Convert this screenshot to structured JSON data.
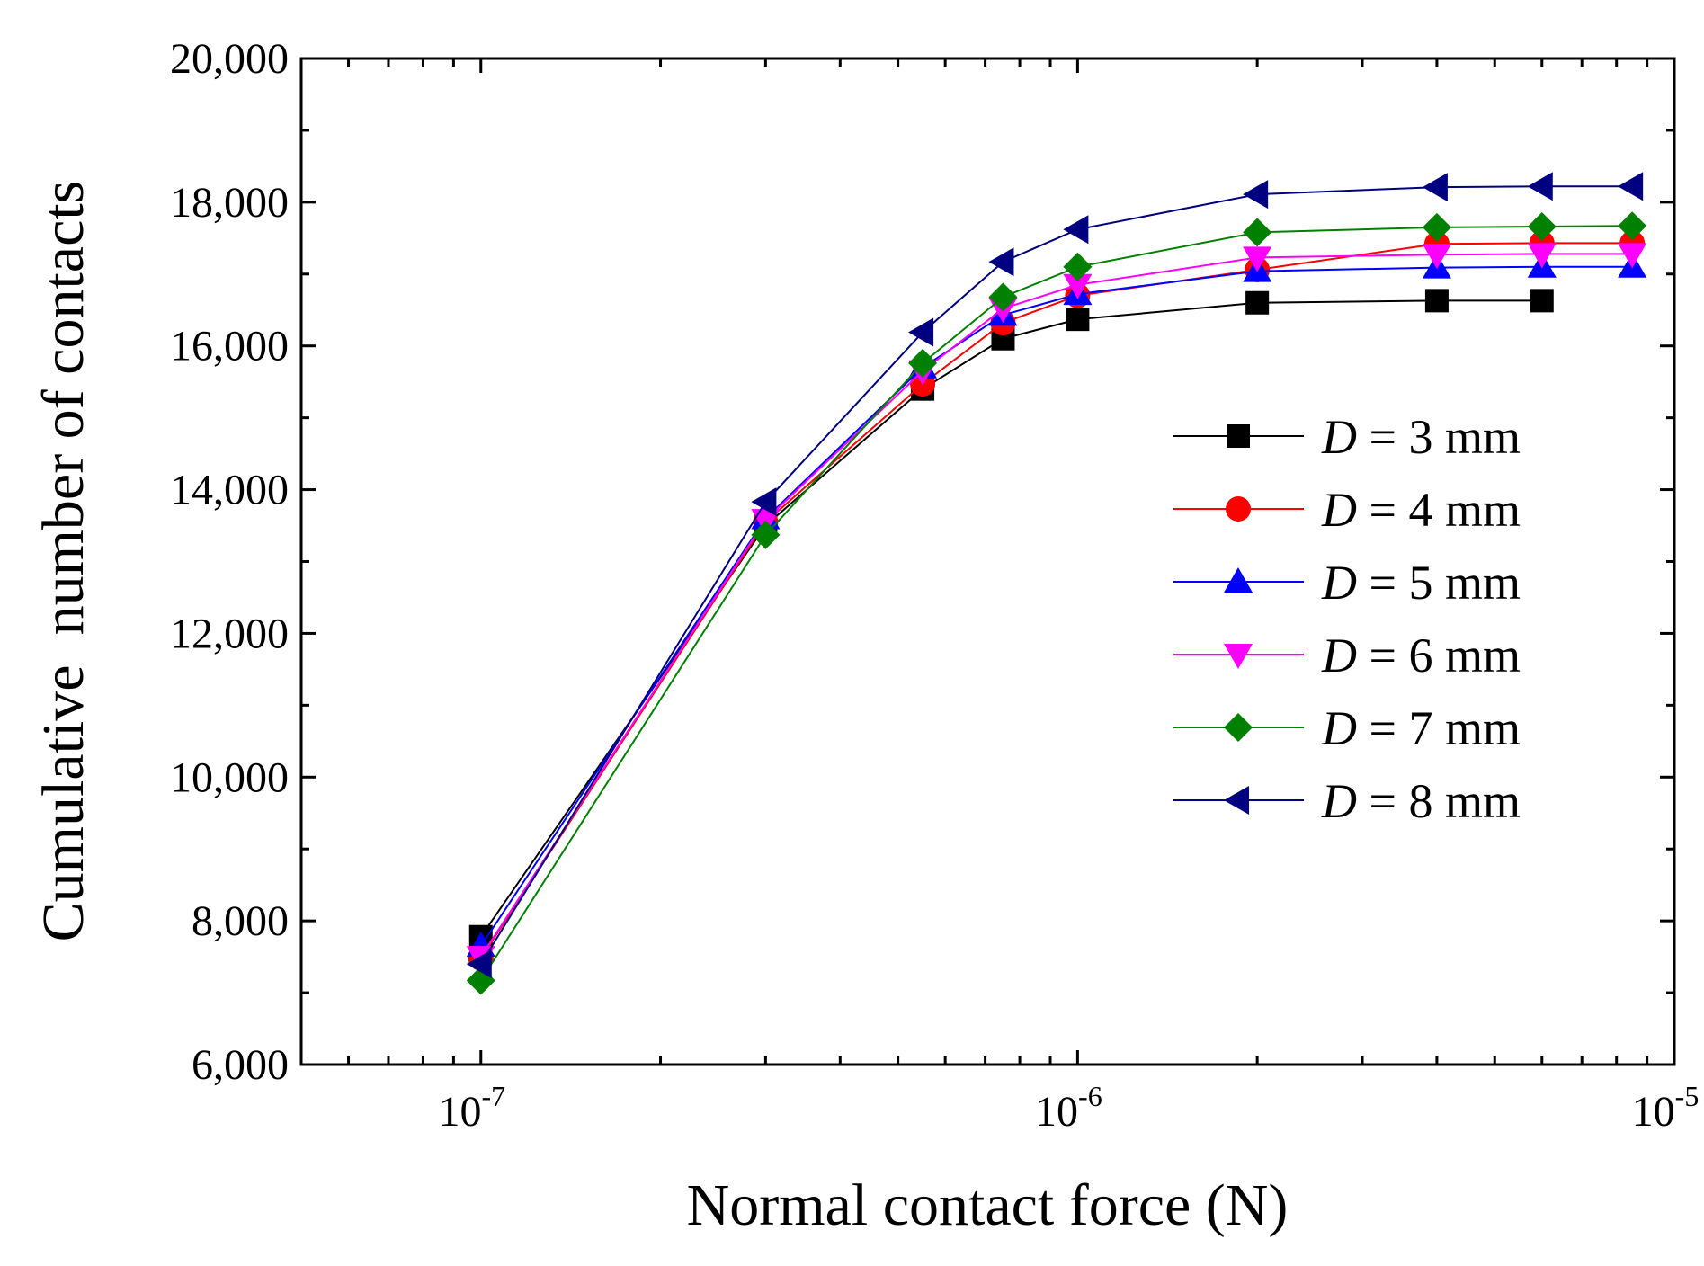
{
  "chart_data": {
    "type": "line",
    "xlabel": "Normal contact force (N)",
    "ylabel": "Cumulative  number of contacts",
    "xscale": "log",
    "xlim": [
      5e-08,
      1e-05
    ],
    "ylim": [
      6000,
      20000
    ],
    "x_ticks": [
      {
        "value": 1e-07,
        "base": "10",
        "exp": "-7"
      },
      {
        "value": 1e-06,
        "base": "10",
        "exp": "-6"
      },
      {
        "value": 1e-05,
        "base": "10",
        "exp": "-5"
      }
    ],
    "y_ticks": [
      {
        "value": 6000,
        "label": "6,000"
      },
      {
        "value": 8000,
        "label": "8,000"
      },
      {
        "value": 10000,
        "label": "10,000"
      },
      {
        "value": 12000,
        "label": "12,000"
      },
      {
        "value": 14000,
        "label": "14,000"
      },
      {
        "value": 16000,
        "label": "16,000"
      },
      {
        "value": 18000,
        "label": "18,000"
      },
      {
        "value": 20000,
        "label": "20,000"
      }
    ],
    "legend_position": "right-middle",
    "x": [
      1e-07,
      3e-07,
      5.5e-07,
      7.5e-07,
      1e-06,
      2e-06,
      4e-06,
      6e-06,
      8.5e-06
    ],
    "series": [
      {
        "name": "D = 3 mm",
        "var": "D",
        "rest": " = 3 mm",
        "color": "#000000",
        "marker": "square",
        "values": [
          7780,
          13500,
          15400,
          16100,
          16370,
          16600,
          16630,
          16630,
          null
        ]
      },
      {
        "name": "D = 4 mm",
        "var": "D",
        "rest": " = 4 mm",
        "color": "#ff0000",
        "marker": "circle",
        "values": [
          7480,
          13550,
          15470,
          16320,
          16700,
          17060,
          17420,
          17430,
          17430
        ]
      },
      {
        "name": "D = 5 mm",
        "var": "D",
        "rest": " = 5 mm",
        "color": "#0000ff",
        "marker": "triangle-up",
        "values": [
          7650,
          13600,
          15700,
          16430,
          16720,
          17040,
          17090,
          17100,
          17100
        ]
      },
      {
        "name": "D = 6 mm",
        "var": "D",
        "rest": " = 6 mm",
        "color": "#ff00ff",
        "marker": "triangle-down",
        "values": [
          7500,
          13580,
          15650,
          16520,
          16850,
          17230,
          17270,
          17280,
          17280
        ]
      },
      {
        "name": "D = 7 mm",
        "var": "D",
        "rest": " = 7 mm",
        "color": "#008000",
        "marker": "diamond",
        "values": [
          7170,
          13370,
          15760,
          16680,
          17100,
          17580,
          17650,
          17660,
          17670
        ]
      },
      {
        "name": "D = 8 mm",
        "var": "D",
        "rest": " = 8 mm",
        "color": "#000080",
        "marker": "triangle-left",
        "values": [
          7400,
          13830,
          16190,
          17170,
          17620,
          18110,
          18210,
          18220,
          18220
        ]
      }
    ]
  }
}
